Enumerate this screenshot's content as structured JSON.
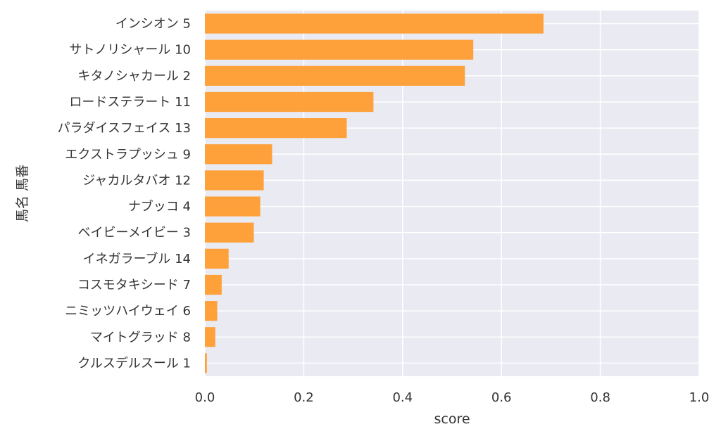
{
  "chart_data": {
    "type": "bar",
    "orientation": "horizontal",
    "categories": [
      "インシオン 5",
      "サトノリシャール 10",
      "キタノシャカール 2",
      "ロードステラート 11",
      "パラダイスフェイス 13",
      "エクストラプッシュ 9",
      "ジャカルタバオ 12",
      "ナブッコ 4",
      "ベイビーメイビー 3",
      "イネガラーブル 14",
      "コスモタキシード 7",
      "ニミッツハイウェイ 6",
      "マイトグラッド 8",
      "クルスデルスール 1"
    ],
    "values": [
      0.685,
      0.543,
      0.526,
      0.341,
      0.287,
      0.136,
      0.119,
      0.112,
      0.099,
      0.048,
      0.034,
      0.025,
      0.021,
      0.004
    ],
    "xlabel": "score",
    "ylabel": "馬名 馬番",
    "xlim": [
      0,
      1.0
    ],
    "xticks": [
      "0.0",
      "0.2",
      "0.4",
      "0.6",
      "0.8",
      "1.0"
    ],
    "grid": true,
    "bar_color": "#ff9a2b",
    "background_color": "#eaeaf2",
    "grid_color": "#ffffff"
  }
}
